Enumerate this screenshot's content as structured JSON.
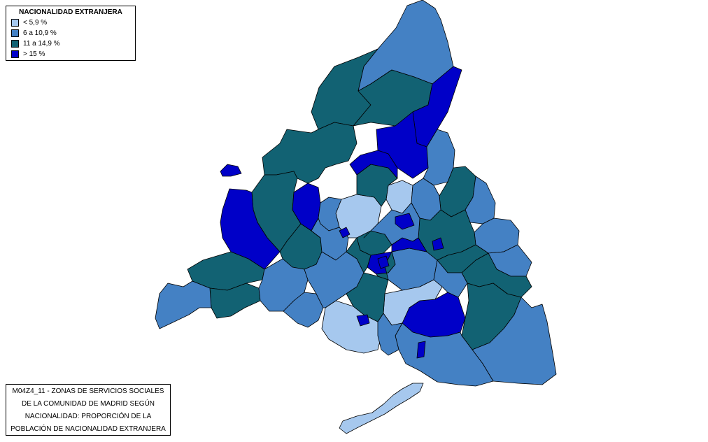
{
  "legend": {
    "title": "NACIONALIDAD EXTRANJERA",
    "items": [
      {
        "label": "< 5,9 %",
        "color": "#a6c8ee"
      },
      {
        "label": "6 a 10,9 %",
        "color": "#4481c4"
      },
      {
        "label": "11 a 14,9 %",
        "color": "#126273"
      },
      {
        "label": "> 15 %",
        "color": "#0000c8"
      }
    ]
  },
  "caption": {
    "lines": [
      "M04Z4_11 - ZONAS DE SERVICIOS SOCIALES",
      "DE LA COMUNIDAD DE MADRID SEGÚN",
      "NACIONALIDAD: PROPORCIÓN DE LA",
      "POBLACIÓN DE NACIONALIDAD EXTRANJERA"
    ]
  },
  "colors": {
    "boundary": "#000000"
  }
}
